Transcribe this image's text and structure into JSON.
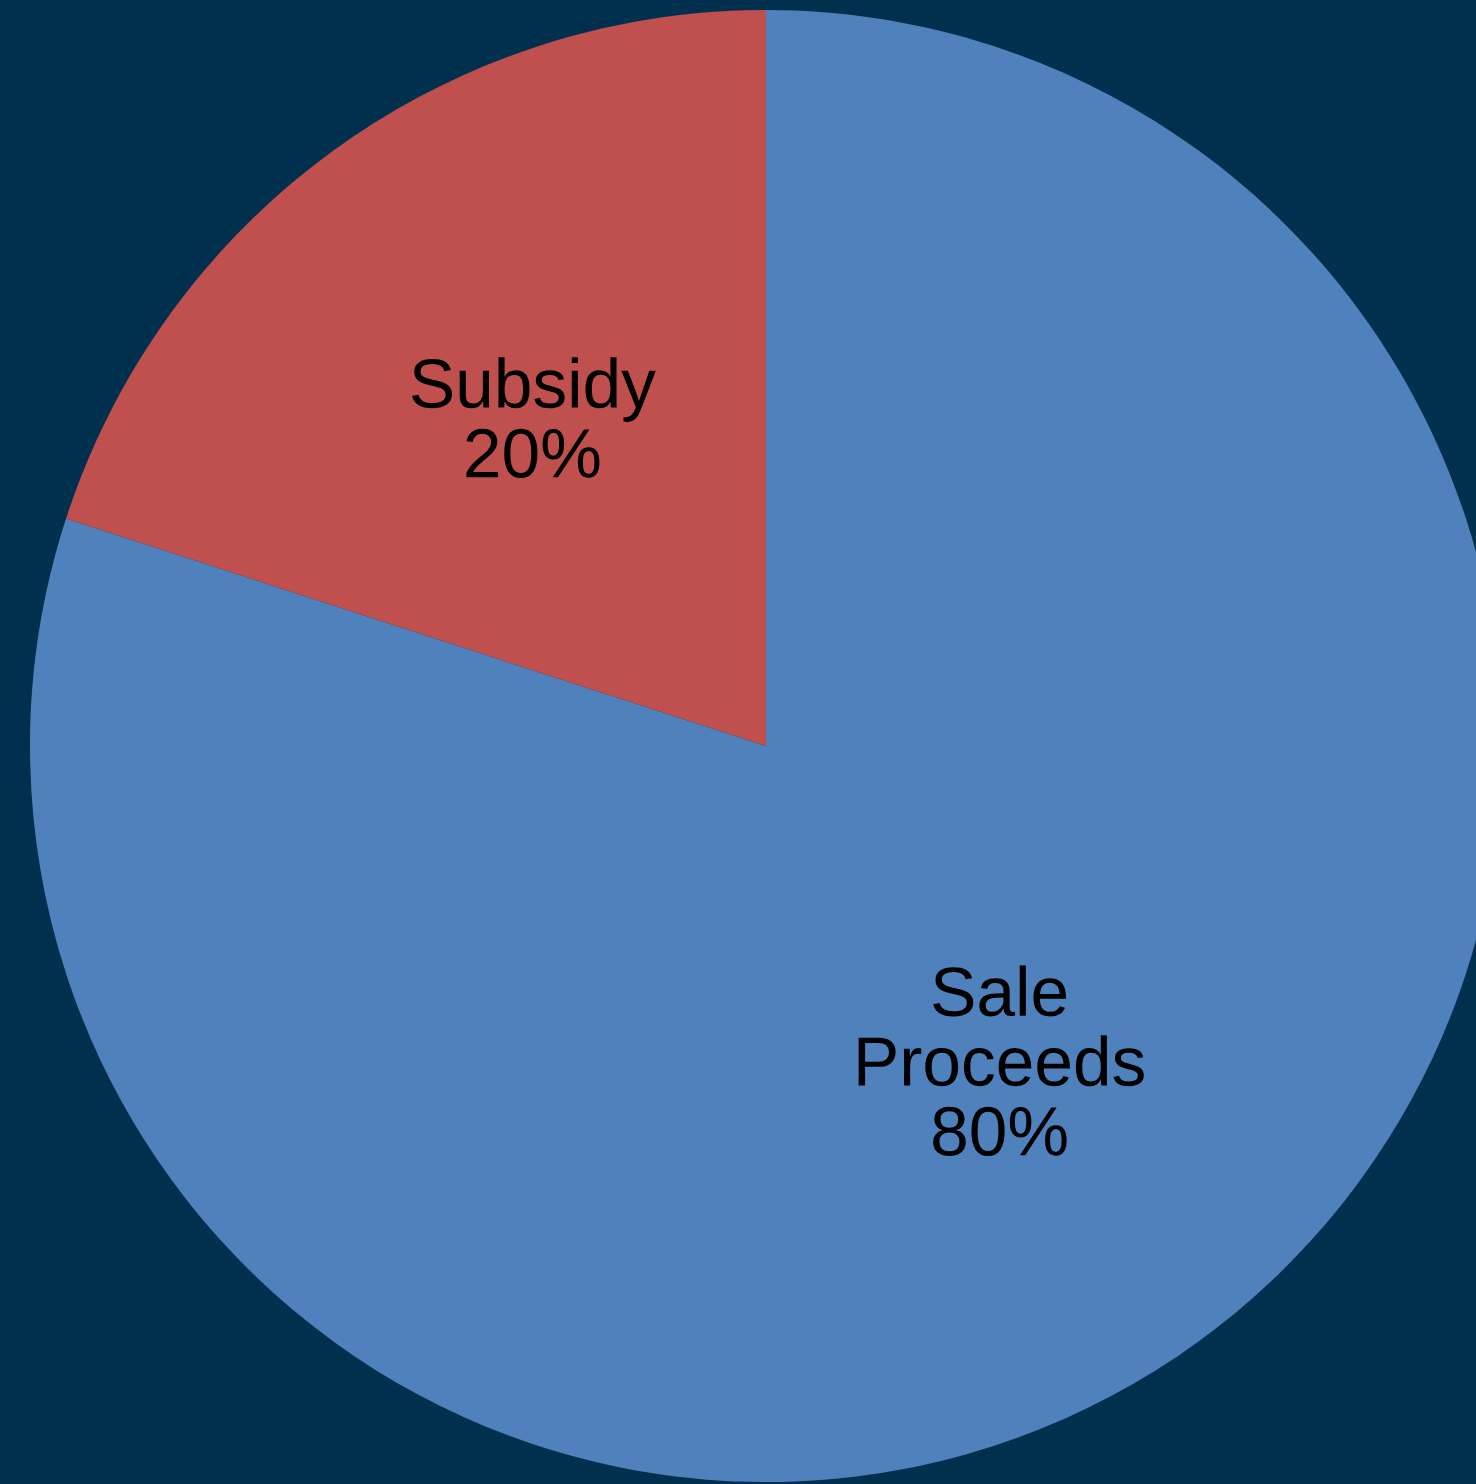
{
  "chart_data": {
    "type": "pie",
    "categories": [
      "Sale Proceeds",
      "Subsidy"
    ],
    "values": [
      80,
      20
    ],
    "value_labels": [
      "80%",
      "20%"
    ],
    "colors": [
      "#4f81bd",
      "#c0504d"
    ],
    "legend": false
  }
}
